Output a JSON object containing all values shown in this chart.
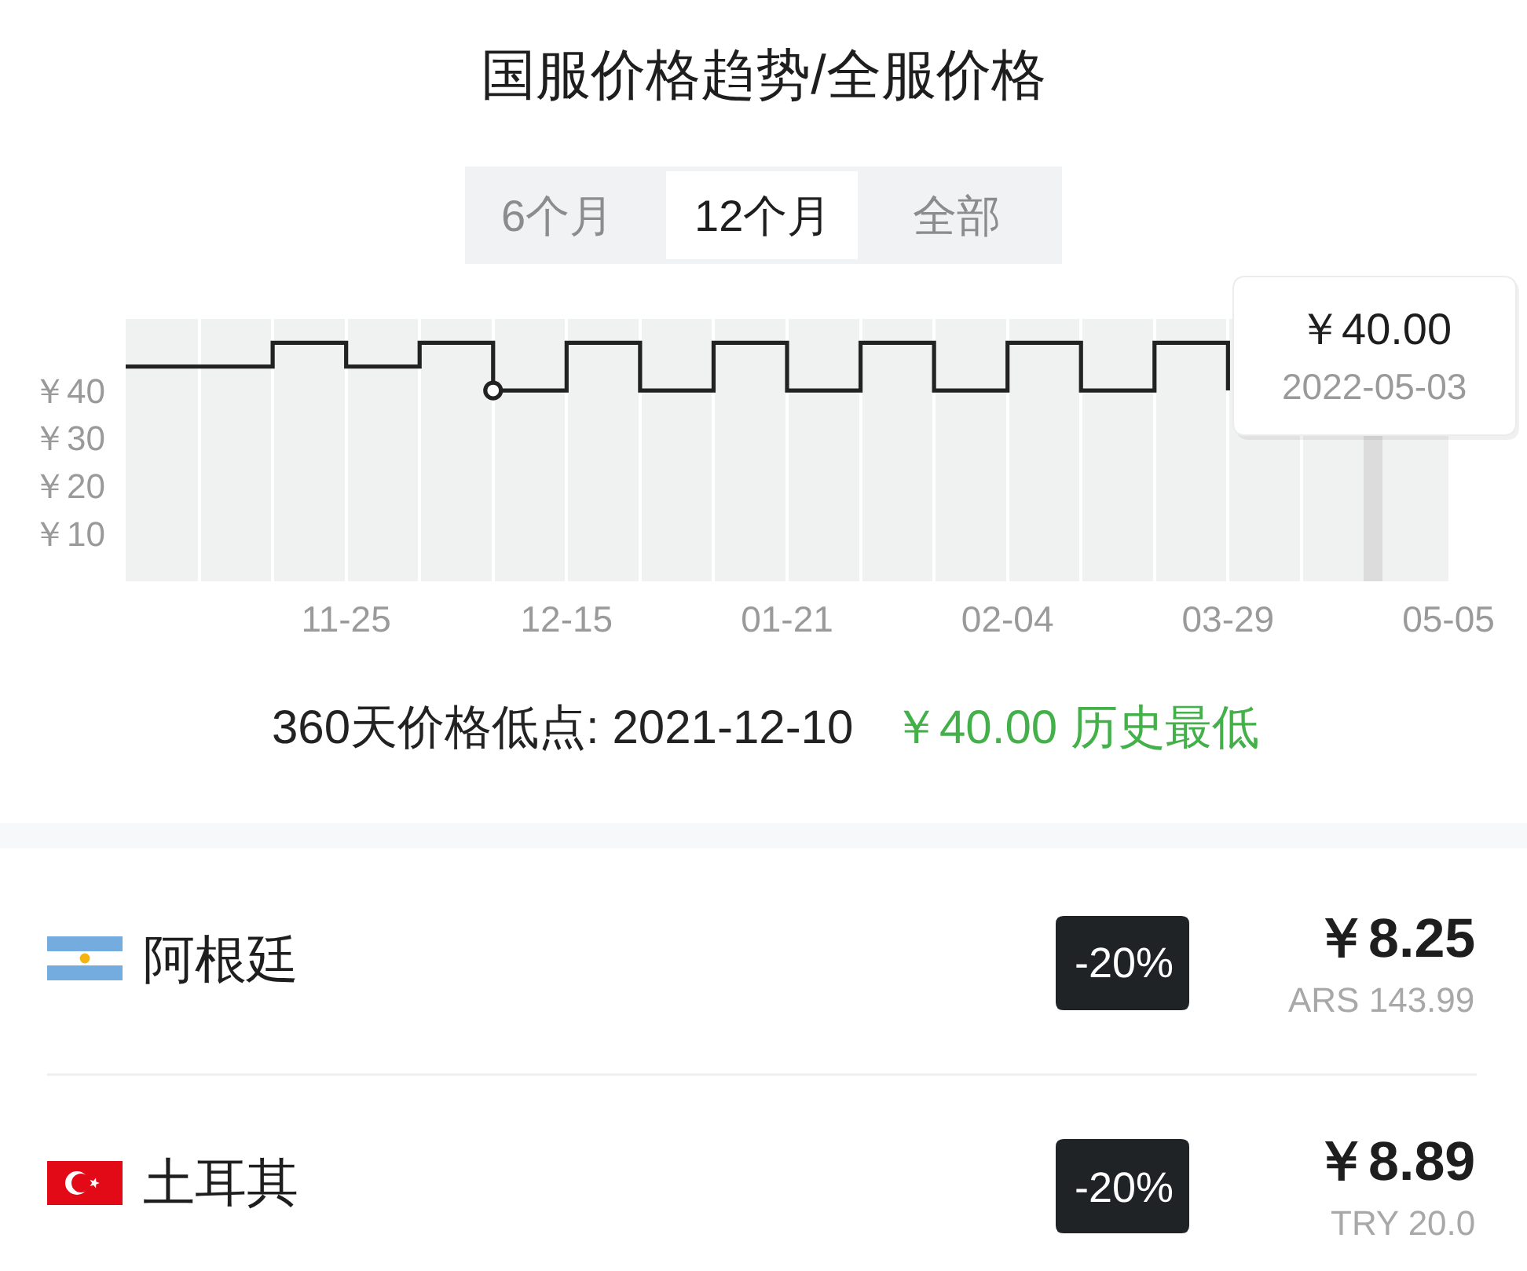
{
  "chart_data": {
    "type": "step",
    "title": "国服价格趋势/全服价格",
    "categories": [
      null,
      null,
      null,
      "11-25",
      null,
      null,
      "12-15",
      null,
      null,
      "01-21",
      null,
      null,
      "02-04",
      null,
      null,
      "03-29",
      null,
      null,
      "05-05"
    ],
    "series": [
      {
        "color": "#222222",
        "values": [
          45,
          45,
          50,
          45,
          50,
          40,
          50,
          40,
          50,
          40,
          50,
          40,
          50,
          40,
          50,
          40,
          null,
          null,
          null
        ]
      },
      {
        "type": "scatter",
        "color": "#222222",
        "marker": "circle",
        "values": [
          null,
          null,
          null,
          null,
          null,
          40,
          null,
          null,
          null,
          null,
          null,
          null,
          null,
          null,
          null,
          null,
          null,
          null,
          null
        ]
      }
    ],
    "ylim": [
      0,
      55
    ],
    "yticks": [
      {
        "value": 40,
        "label": "￥40"
      },
      {
        "value": 30,
        "label": "￥30"
      },
      {
        "value": 20,
        "label": "￥20"
      },
      {
        "value": 10,
        "label": "￥10"
      }
    ],
    "grid": "x",
    "annotations": [
      "6个月",
      "12个月",
      "全部",
      "￥40.00",
      "2022-05-03",
      "360天价格低点: 2021-12-10",
      "￥40.00 历史最低",
      "阿根廷",
      "-20%",
      "￥8.25",
      "ARS 143.99",
      "土耳其",
      "-20%",
      "￥8.89",
      "TRY 20.0"
    ]
  }
}
